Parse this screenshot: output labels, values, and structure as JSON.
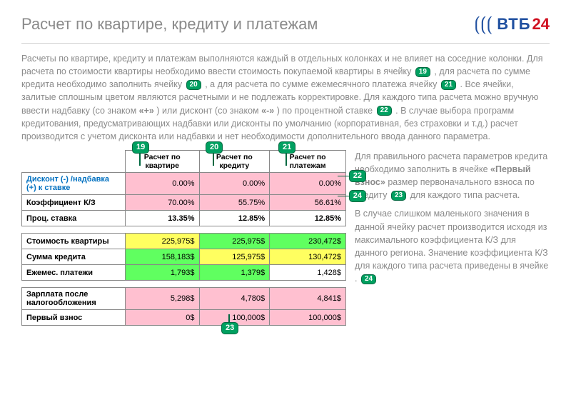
{
  "header": {
    "title": "Расчет по квартире, кредиту и платежам",
    "logo_vtb": "ВТБ",
    "logo_24": "24"
  },
  "intro": {
    "line1a": "Расчеты по квартире, кредиту и платежам выполняются каждый в отдельных колонках и не влияет на соседние колонки. Для расчета по стоимости квартиры необходимо ввести стоимость покупаемой квартиры в ячейку ",
    "ref19": "19",
    "line1b": ", для расчета по сумме кредита необходимо заполнить ячейку ",
    "ref20": "20",
    "line1c": ", а для расчета по сумме ежемесячного платежа ячейку ",
    "ref21": "21",
    "line1d": ". Все ячейки, залитые сплошным цветом являются расчетными и не подлежать корректировке. Для каждого типа расчета можно вручную ввести надбавку (со знаком ",
    "plus_sign": "«+»",
    "line1e": ") или дисконт (со знаком ",
    "minus_sign": "«-»",
    "line1f": ") по процентной ставке ",
    "ref22": "22",
    "line1g": ". В случае выбора программ кредитования, предусматривающих надбавки или дисконты по умолчанию (корпоративная, без страховки и т.д.) расчет производится с учетом дисконта или надбавки и нет необходимости дополнительного ввода данного параметра."
  },
  "table": {
    "col_headers": [
      "Расчет по квартире",
      "Расчет по кредиту",
      "Расчет по платежам"
    ],
    "rows": [
      {
        "label": "Дисконт (-) /надбавка (+) к ставке",
        "vals": [
          "0.00%",
          "0.00%",
          "0.00%"
        ],
        "label_color": "#0070c0",
        "bg": [
          "#ffc0d0",
          "#ffc0d0",
          "#ffc0d0"
        ]
      },
      {
        "label": "Коэффициент К/З",
        "vals": [
          "70.00%",
          "55.75%",
          "56.61%"
        ],
        "bg": [
          "#ffc0d0",
          "#ffc0d0",
          "#ffc0d0"
        ]
      },
      {
        "label": "Проц. ставка",
        "vals": [
          "13.35%",
          "12.85%",
          "12.85%"
        ],
        "bold": true,
        "bg": [
          "#ffffff",
          "#ffffff",
          "#ffffff"
        ]
      }
    ],
    "rows2": [
      {
        "label": "Стоимость квартиры",
        "vals": [
          "225,975$",
          "225,975$",
          "230,472$"
        ],
        "bg": [
          "#ffff60",
          "#60ff60",
          "#60ff60"
        ]
      },
      {
        "label": "Сумма кредита",
        "vals": [
          "158,183$",
          "125,975$",
          "130,472$"
        ],
        "bg": [
          "#60ff60",
          "#ffff60",
          "#ffff60"
        ]
      },
      {
        "label": "Ежемес. платежи",
        "vals": [
          "1,793$",
          "1,379$",
          "1,428$"
        ],
        "bg": [
          "#60ff60",
          "#60ff60",
          "#ffffff"
        ]
      }
    ],
    "rows3": [
      {
        "label": "Зарплата после налогообложения",
        "vals": [
          "5,298$",
          "4,780$",
          "4,841$"
        ],
        "bg": [
          "#ffc0d0",
          "#ffc0d0",
          "#ffc0d0"
        ]
      },
      {
        "label": "Первый взнос",
        "vals": [
          "0$",
          "100,000$",
          "100,000$"
        ],
        "bg": [
          "#ffc0d0",
          "#ffc0d0",
          "#ffc0d0"
        ]
      }
    ],
    "callouts": {
      "c19": "19",
      "c20": "20",
      "c21": "21",
      "c22": "22",
      "c23": "23",
      "c24": "24"
    }
  },
  "side": {
    "p1a": "Для правильного расчета параметров кредита необходимо заполнить в ячейке ",
    "p1b": "«Первый взнос»",
    "p1c": " размер первоначального взноса по кредиту ",
    "ref23": "23",
    "p1d": " для каждого типа расчета.",
    "p2a": "В случае слишком маленького значения в данной ячейку расчет производится исходя из максимального коэффициента К/З для данного региона. Значение коэффициента К/З для каждого типа расчета приведены в ячейке ",
    "ref24": "24",
    "p2b": "."
  }
}
